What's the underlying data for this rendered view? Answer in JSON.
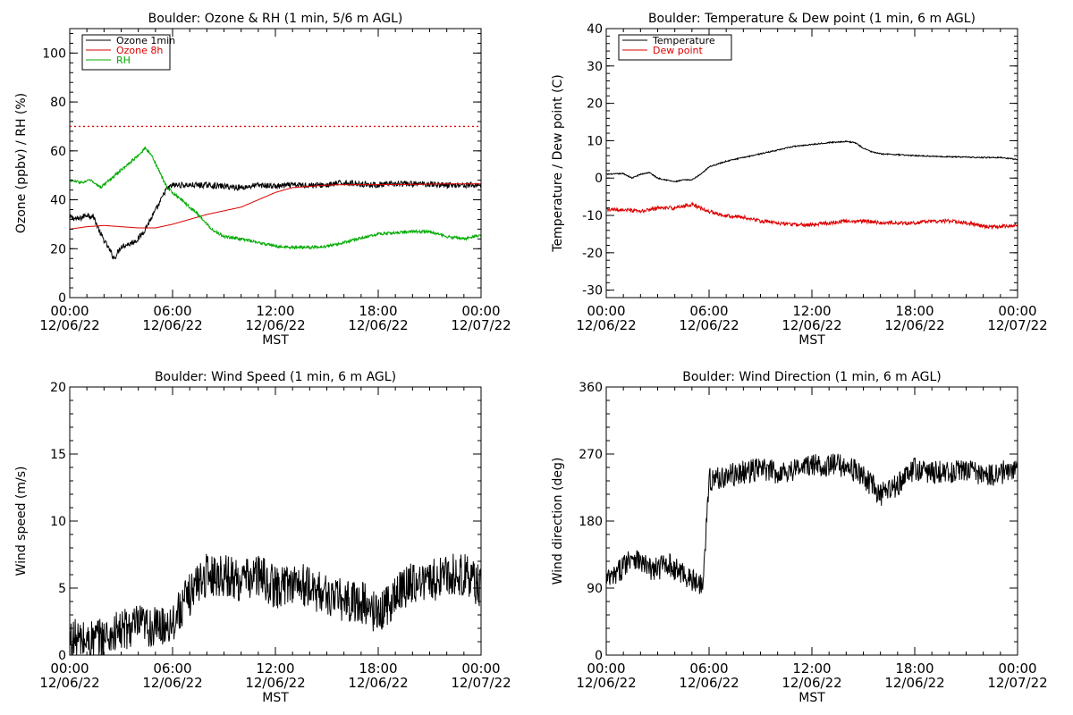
{
  "chart_data": [
    {
      "type": "line",
      "title": "Boulder: Ozone & RH (1 min, 5/6 m AGL)",
      "xlabel": "MST",
      "ylabel": "Ozone (ppbv) / RH (%)",
      "x_range_hours": [
        0,
        24
      ],
      "ylim": [
        0,
        110
      ],
      "yticks": [
        0,
        20,
        40,
        60,
        80,
        100
      ],
      "x_tick_labels": [
        {
          "time": "00:00",
          "date": "12/06/22"
        },
        {
          "time": "06:00",
          "date": "12/06/22"
        },
        {
          "time": "12:00",
          "date": "12/06/22"
        },
        {
          "time": "18:00",
          "date": "12/06/22"
        },
        {
          "time": "00:00",
          "date": "12/07/22"
        }
      ],
      "legend_position": "top-left",
      "reference_line": {
        "y": 70,
        "color": "#dd0000",
        "style": "dotted"
      },
      "series": [
        {
          "name": "Ozone 1min",
          "color": "#000000",
          "noise": 1.2,
          "points": [
            [
              0,
              33
            ],
            [
              0.5,
              32
            ],
            [
              1,
              34
            ],
            [
              1.4,
              33
            ],
            [
              1.8,
              26
            ],
            [
              2.2,
              21
            ],
            [
              2.6,
              16
            ],
            [
              3,
              21
            ],
            [
              3.5,
              22
            ],
            [
              4,
              24
            ],
            [
              4.4,
              28
            ],
            [
              4.8,
              33
            ],
            [
              5.2,
              38
            ],
            [
              5.6,
              44
            ],
            [
              6,
              46
            ],
            [
              7,
              46
            ],
            [
              8,
              46
            ],
            [
              9,
              45.5
            ],
            [
              10,
              45
            ],
            [
              11,
              46
            ],
            [
              12,
              45.5
            ],
            [
              13,
              46
            ],
            [
              14,
              46
            ],
            [
              15,
              46
            ],
            [
              16,
              47
            ],
            [
              17,
              46.5
            ],
            [
              18,
              46
            ],
            [
              19,
              46.5
            ],
            [
              20,
              46.5
            ],
            [
              21,
              46.5
            ],
            [
              22,
              46
            ],
            [
              23,
              46
            ],
            [
              24,
              46
            ]
          ]
        },
        {
          "name": "Ozone 8h",
          "color": "#dd0000",
          "noise": 0,
          "points": [
            [
              0,
              28
            ],
            [
              1,
              29
            ],
            [
              2,
              29.5
            ],
            [
              3,
              29
            ],
            [
              4,
              28.5
            ],
            [
              5,
              28.5
            ],
            [
              6,
              30
            ],
            [
              7,
              32
            ],
            [
              8,
              34
            ],
            [
              9,
              35.5
            ],
            [
              10,
              37
            ],
            [
              11,
              40
            ],
            [
              12,
              43
            ],
            [
              13,
              45
            ],
            [
              14,
              45.5
            ],
            [
              15,
              46
            ],
            [
              16,
              46.2
            ],
            [
              18,
              46.2
            ],
            [
              20,
              46.3
            ],
            [
              22,
              46.5
            ],
            [
              24,
              46.5
            ]
          ]
        },
        {
          "name": "RH",
          "color": "#00aa00",
          "noise": 0.6,
          "points": [
            [
              0,
              48
            ],
            [
              0.7,
              47
            ],
            [
              1.2,
              48
            ],
            [
              1.8,
              45
            ],
            [
              2.3,
              48
            ],
            [
              2.8,
              51
            ],
            [
              3.3,
              54
            ],
            [
              3.8,
              57
            ],
            [
              4.4,
              61
            ],
            [
              4.8,
              58
            ],
            [
              5.2,
              52
            ],
            [
              5.6,
              46
            ],
            [
              6,
              43
            ],
            [
              6.5,
              40
            ],
            [
              7,
              37
            ],
            [
              7.5,
              34
            ],
            [
              8,
              30
            ],
            [
              8.5,
              27
            ],
            [
              9,
              25
            ],
            [
              10,
              24
            ],
            [
              11,
              22.5
            ],
            [
              12,
              21
            ],
            [
              13,
              20.5
            ],
            [
              14,
              20.5
            ],
            [
              15,
              21
            ],
            [
              16,
              22.5
            ],
            [
              17,
              24.5
            ],
            [
              18,
              26
            ],
            [
              19,
              26.5
            ],
            [
              20,
              27
            ],
            [
              21,
              27
            ],
            [
              22,
              25
            ],
            [
              23,
              24
            ],
            [
              24,
              25.5
            ]
          ]
        }
      ]
    },
    {
      "type": "line",
      "title": "Boulder: Temperature & Dew point (1 min, 6 m AGL)",
      "xlabel": "MST",
      "ylabel": "Temperature / Dew point (C)",
      "x_range_hours": [
        0,
        24
      ],
      "ylim": [
        -32,
        40
      ],
      "yticks": [
        -30,
        -20,
        -10,
        0,
        10,
        20,
        30,
        40
      ],
      "x_tick_labels": [
        {
          "time": "00:00",
          "date": "12/06/22"
        },
        {
          "time": "06:00",
          "date": "12/06/22"
        },
        {
          "time": "12:00",
          "date": "12/06/22"
        },
        {
          "time": "18:00",
          "date": "12/06/22"
        },
        {
          "time": "00:00",
          "date": "12/07/22"
        }
      ],
      "legend_position": "top-left",
      "series": [
        {
          "name": "Temperature",
          "color": "#000000",
          "noise": 0.15,
          "points": [
            [
              0,
              1
            ],
            [
              1,
              1.2
            ],
            [
              1.5,
              0
            ],
            [
              2,
              1
            ],
            [
              2.5,
              1.5
            ],
            [
              3,
              0
            ],
            [
              3.5,
              -0.5
            ],
            [
              4,
              -1
            ],
            [
              4.5,
              -0.5
            ],
            [
              5,
              -0.5
            ],
            [
              5.5,
              1
            ],
            [
              6,
              3
            ],
            [
              7,
              4.5
            ],
            [
              8,
              5.5
            ],
            [
              9,
              6.5
            ],
            [
              10,
              7.5
            ],
            [
              11,
              8.5
            ],
            [
              12,
              9
            ],
            [
              13,
              9.5
            ],
            [
              14,
              9.8
            ],
            [
              14.5,
              9.5
            ],
            [
              15,
              8
            ],
            [
              15.5,
              7
            ],
            [
              16,
              6.5
            ],
            [
              18,
              6
            ],
            [
              20,
              5.7
            ],
            [
              22,
              5.5
            ],
            [
              23,
              5.5
            ],
            [
              24,
              5
            ]
          ]
        },
        {
          "name": "Dew point",
          "color": "#dd0000",
          "noise": 0.5,
          "points": [
            [
              0,
              -8.5
            ],
            [
              1,
              -8.5
            ],
            [
              2,
              -9
            ],
            [
              3,
              -8
            ],
            [
              4,
              -8
            ],
            [
              4.5,
              -7.5
            ],
            [
              5,
              -7
            ],
            [
              5.5,
              -8
            ],
            [
              6,
              -9
            ],
            [
              7,
              -10
            ],
            [
              8,
              -10.5
            ],
            [
              9,
              -11.5
            ],
            [
              10,
              -12
            ],
            [
              11,
              -12.5
            ],
            [
              12,
              -12.5
            ],
            [
              13,
              -12
            ],
            [
              14,
              -11.5
            ],
            [
              15,
              -11.5
            ],
            [
              16,
              -12
            ],
            [
              17,
              -12
            ],
            [
              18,
              -12
            ],
            [
              19,
              -11.5
            ],
            [
              20,
              -11.5
            ],
            [
              21,
              -12
            ],
            [
              22,
              -13
            ],
            [
              23,
              -13
            ],
            [
              24,
              -12.5
            ]
          ]
        }
      ]
    },
    {
      "type": "line",
      "title": "Boulder: Wind Speed (1 min, 6 m AGL)",
      "xlabel": "MST",
      "ylabel": "Wind speed (m/s)",
      "x_range_hours": [
        0,
        24
      ],
      "ylim": [
        0,
        20
      ],
      "yticks": [
        0,
        5,
        10,
        15,
        20
      ],
      "x_tick_labels": [
        {
          "time": "00:00",
          "date": "12/06/22"
        },
        {
          "time": "06:00",
          "date": "12/06/22"
        },
        {
          "time": "12:00",
          "date": "12/06/22"
        },
        {
          "time": "18:00",
          "date": "12/06/22"
        },
        {
          "time": "00:00",
          "date": "12/07/22"
        }
      ],
      "series": [
        {
          "color": "#000000",
          "noise": 1.6,
          "points": [
            [
              0,
              1.2
            ],
            [
              1,
              1
            ],
            [
              2,
              1.3
            ],
            [
              3,
              1.8
            ],
            [
              4,
              2.2
            ],
            [
              5,
              2
            ],
            [
              6,
              2.5
            ],
            [
              6.5,
              3.5
            ],
            [
              7,
              4.5
            ],
            [
              7.5,
              5.5
            ],
            [
              8,
              6
            ],
            [
              9,
              6
            ],
            [
              10,
              5.5
            ],
            [
              11,
              6
            ],
            [
              12,
              5
            ],
            [
              13,
              5.5
            ],
            [
              14,
              5
            ],
            [
              15,
              4.5
            ],
            [
              16,
              4
            ],
            [
              17,
              4
            ],
            [
              18,
              3
            ],
            [
              19,
              4.5
            ],
            [
              20,
              5.5
            ],
            [
              21,
              5.5
            ],
            [
              22,
              6
            ],
            [
              23,
              6
            ],
            [
              24,
              5
            ]
          ]
        }
      ]
    },
    {
      "type": "line",
      "title": "Boulder: Wind Direction (1 min, 6 m AGL)",
      "xlabel": "MST",
      "ylabel": "Wind direction (deg)",
      "x_range_hours": [
        0,
        24
      ],
      "ylim": [
        0,
        360
      ],
      "yticks": [
        0,
        90,
        180,
        270,
        360
      ],
      "x_tick_labels": [
        {
          "time": "00:00",
          "date": "12/06/22"
        },
        {
          "time": "06:00",
          "date": "12/06/22"
        },
        {
          "time": "12:00",
          "date": "12/06/22"
        },
        {
          "time": "18:00",
          "date": "12/06/22"
        },
        {
          "time": "00:00",
          "date": "12/07/22"
        }
      ],
      "series": [
        {
          "color": "#000000",
          "noise": 16,
          "points": [
            [
              0,
              100
            ],
            [
              0.5,
              105
            ],
            [
              1,
              120
            ],
            [
              1.5,
              135
            ],
            [
              2,
              125
            ],
            [
              2.5,
              115
            ],
            [
              3,
              115
            ],
            [
              3.5,
              125
            ],
            [
              4,
              115
            ],
            [
              4.5,
              110
            ],
            [
              5,
              100
            ],
            [
              5.6,
              95
            ],
            [
              5.8,
              160
            ],
            [
              6,
              235
            ],
            [
              7,
              240
            ],
            [
              8,
              245
            ],
            [
              9,
              250
            ],
            [
              10,
              245
            ],
            [
              11,
              250
            ],
            [
              12,
              255
            ],
            [
              13,
              255
            ],
            [
              14,
              255
            ],
            [
              15,
              240
            ],
            [
              16,
              215
            ],
            [
              16.5,
              220
            ],
            [
              17,
              230
            ],
            [
              18,
              250
            ],
            [
              19,
              245
            ],
            [
              20,
              245
            ],
            [
              21,
              250
            ],
            [
              22,
              240
            ],
            [
              23,
              245
            ],
            [
              24,
              250
            ]
          ]
        }
      ]
    }
  ]
}
